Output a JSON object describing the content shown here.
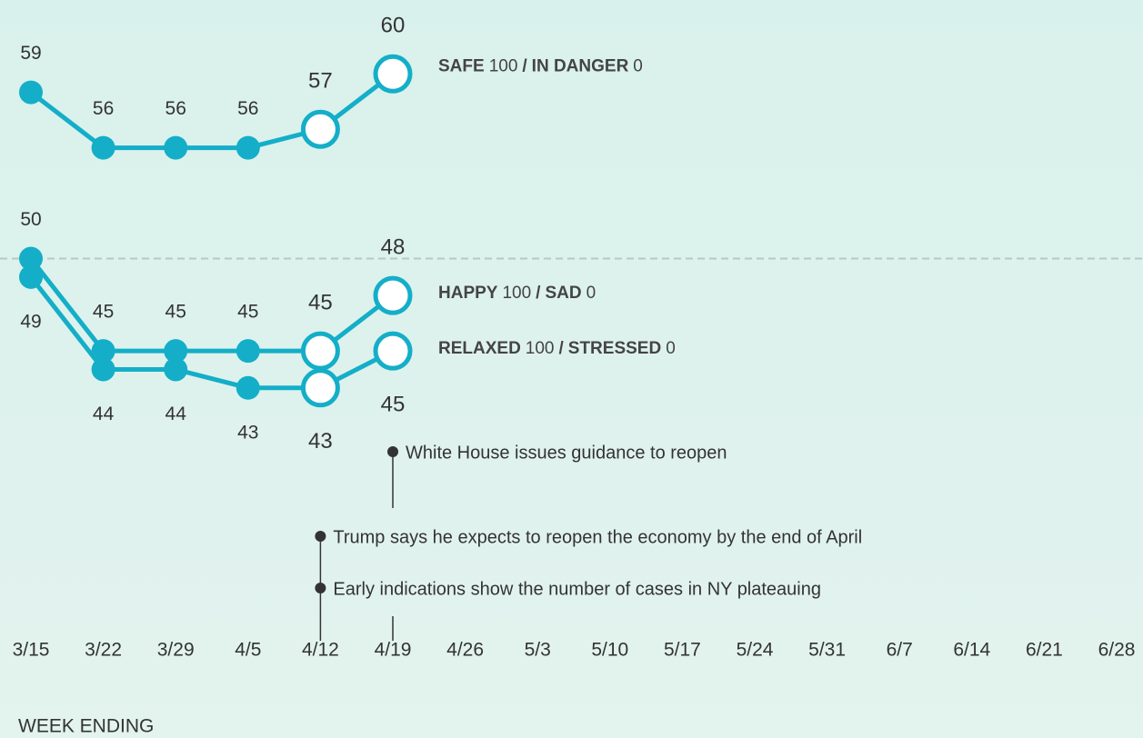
{
  "chart_data": {
    "type": "line",
    "categories": [
      "3/15",
      "3/22",
      "3/29",
      "4/5",
      "4/12",
      "4/19",
      "4/26",
      "5/3",
      "5/10",
      "5/17",
      "5/24",
      "5/31",
      "6/7",
      "6/14",
      "6/21",
      "6/28"
    ],
    "x_label": "WEEK ENDING",
    "ylim": [
      30,
      64
    ],
    "reference_line": 50,
    "open_markers_from": 4,
    "series": [
      {
        "name_parts": [
          {
            "text": "SAFE",
            "bold": true
          },
          {
            "text": "100",
            "bold": false
          },
          {
            "text": "/",
            "bold": true
          },
          {
            "text": "IN DANGER",
            "bold": true
          },
          {
            "text": "0",
            "bold": false
          }
        ],
        "color": "#14aec8",
        "label_position": "above",
        "values": [
          59,
          56,
          56,
          56,
          57,
          60,
          null,
          null,
          null,
          null,
          null,
          null,
          null,
          null,
          null,
          null
        ]
      },
      {
        "name_parts": [
          {
            "text": "HAPPY",
            "bold": true
          },
          {
            "text": "100",
            "bold": false
          },
          {
            "text": "/",
            "bold": true
          },
          {
            "text": "SAD",
            "bold": true
          },
          {
            "text": "0",
            "bold": false
          }
        ],
        "color": "#14aec8",
        "label_position": "above",
        "values": [
          50,
          45,
          45,
          45,
          45,
          48,
          null,
          null,
          null,
          null,
          null,
          null,
          null,
          null,
          null,
          null
        ]
      },
      {
        "name_parts": [
          {
            "text": "RELAXED",
            "bold": true
          },
          {
            "text": "100",
            "bold": false
          },
          {
            "text": "/",
            "bold": true
          },
          {
            "text": "STRESSED",
            "bold": true
          },
          {
            "text": "0",
            "bold": false
          }
        ],
        "color": "#14aec8",
        "label_position": "below",
        "values": [
          49,
          44,
          44,
          43,
          43,
          45,
          null,
          null,
          null,
          null,
          null,
          null,
          null,
          null,
          null,
          null
        ]
      }
    ],
    "annotations": [
      {
        "text": "White House issues guidance to reopen",
        "at": 5
      },
      {
        "text": "Trump says he expects to reopen the economy by the end of April",
        "at": 4
      },
      {
        "text": "Early indications show the number of cases in NY plateauing",
        "at": 4
      }
    ]
  }
}
